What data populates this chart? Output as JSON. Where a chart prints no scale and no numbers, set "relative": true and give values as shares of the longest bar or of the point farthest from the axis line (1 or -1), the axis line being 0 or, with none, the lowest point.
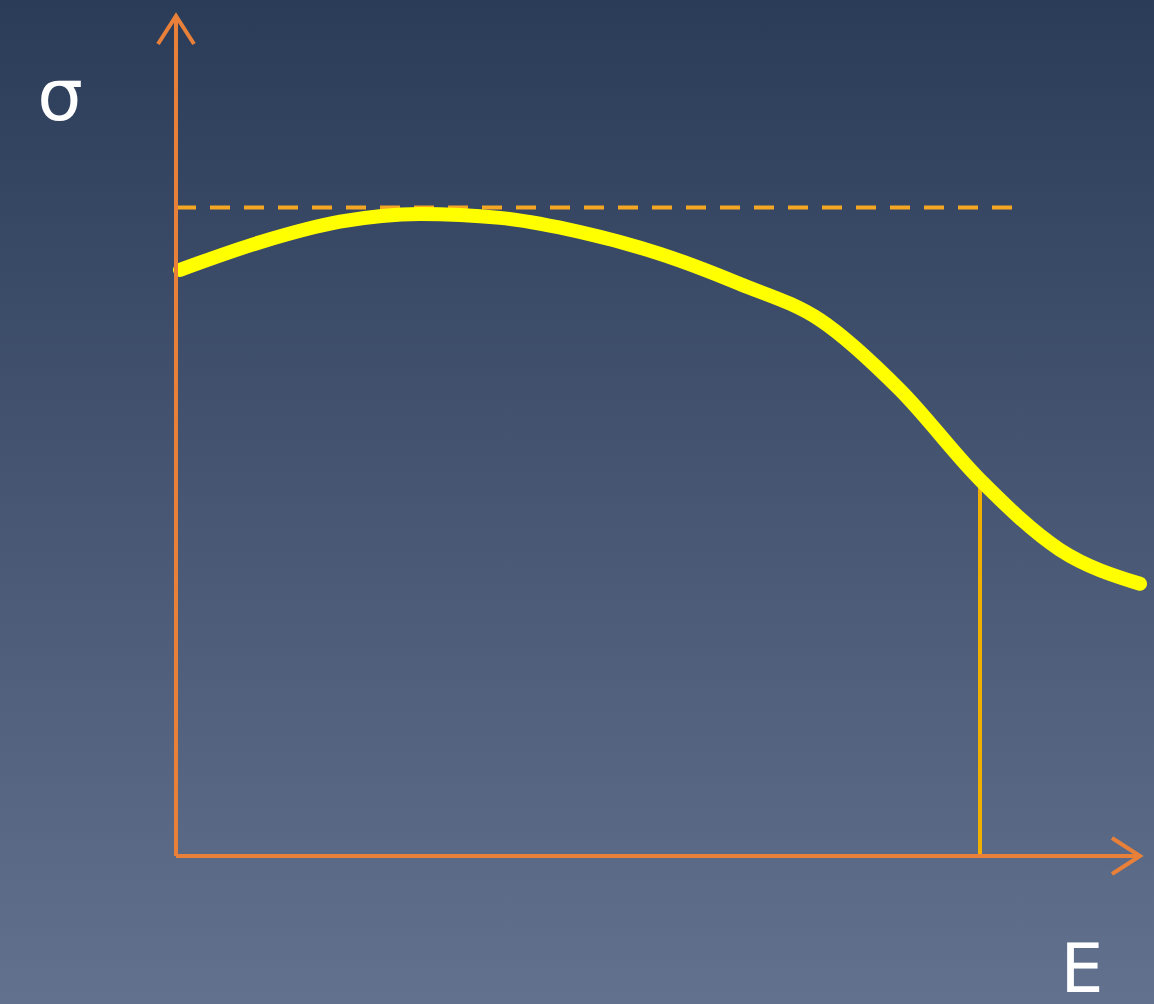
{
  "chart_data": {
    "type": "line",
    "xlabel": "E",
    "ylabel": "σ",
    "relative": true,
    "categories": [
      null,
      null,
      null,
      null,
      null,
      null,
      null,
      null,
      null,
      null,
      null,
      null,
      null
    ],
    "series": [
      {
        "color": "#ffff00",
        "values": [
          0.913,
          0.956,
          0.988,
          1,
          0.994,
          0.972,
          0.938,
          0.891,
          0.835,
          0.726,
          0.586,
          0.477,
          0.424
        ]
      }
    ],
    "ref_lines": [
      {
        "axis": "y",
        "value": 1.01,
        "color": "#f5a623",
        "line_style": "dashed"
      }
    ],
    "line_style": "solid"
  }
}
